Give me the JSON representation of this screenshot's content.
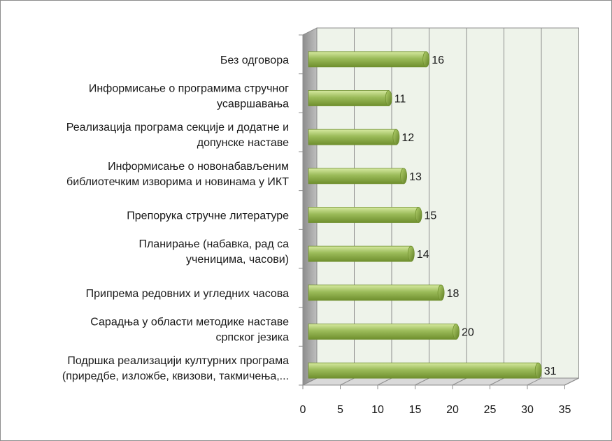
{
  "chart_data": {
    "type": "bar",
    "orientation": "horizontal",
    "title": "",
    "xlabel": "",
    "ylabel": "",
    "xlim": [
      0,
      35
    ],
    "xticks": [
      0,
      5,
      10,
      15,
      20,
      25,
      30,
      35
    ],
    "grid": true,
    "legend": "none",
    "categories": [
      [
        "Без одговора"
      ],
      [
        "Информисање о програмима стручног",
        "усавршавања"
      ],
      [
        "Реализација програма секције и додатне и",
        "допунске наставе"
      ],
      [
        "Информисање о новонабављеним",
        "библиотечким изворима и новинама  у ИКТ"
      ],
      [
        "Препорука стручне литературе"
      ],
      [
        "Планирање (набавка, рад са",
        "ученицима, часови)"
      ],
      [
        "Припрема редовних и угледних часова"
      ],
      [
        "Сарадња у области методике наставе",
        "српског језика"
      ],
      [
        "Подршка реализацији  културних програма",
        "(приредбе, изложбе, квизови, такмичења,..."
      ]
    ],
    "values": [
      16,
      11,
      12,
      13,
      15,
      14,
      18,
      20,
      31
    ],
    "colors": {
      "bar_light": "#c8e07a",
      "bar_mid": "#9bbb59",
      "bar_dark": "#6f8f2e",
      "bar_end": "#7da23a",
      "wall": "#eef3ea",
      "side_wall": "#a6a6a6",
      "floor": "#d9d9d9",
      "grid": "#8c8c8c"
    }
  }
}
